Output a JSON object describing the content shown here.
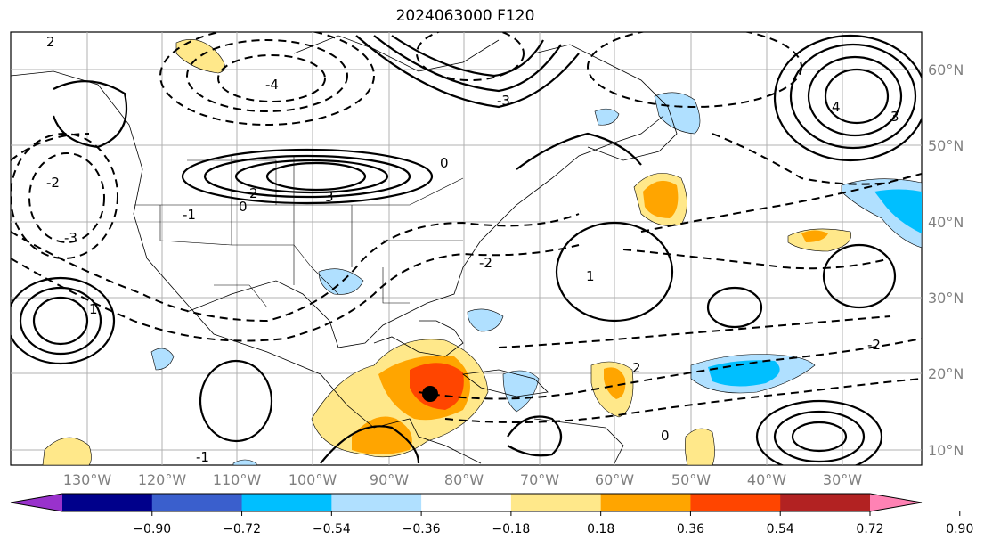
{
  "title": "2024063000 F120",
  "lon_labels": [
    "130°W",
    "120°W",
    "110°W",
    "100°W",
    "90°W",
    "80°W",
    "70°W",
    "60°W",
    "50°W",
    "40°W",
    "30°W"
  ],
  "lat_labels": [
    "60°N",
    "50°N",
    "40°N",
    "30°N",
    "20°N",
    "10°N"
  ],
  "colorbar": {
    "ticks": [
      "−0.90",
      "−0.72",
      "−0.54",
      "−0.36",
      "−0.18",
      "0.18",
      "0.36",
      "0.54",
      "0.72",
      "0.90"
    ],
    "colors": [
      "#9932cc",
      "#00008b",
      "#3a5fcd",
      "#00bfff",
      "#b0e0ff",
      "#ffffff",
      "#ffe88a",
      "#ffa500",
      "#ff4500",
      "#b22222",
      "#ff82b4"
    ]
  },
  "contour_labels": [
    "2",
    "0",
    "-4",
    "-3",
    "-2",
    "-1",
    "1",
    "2",
    "3",
    "4",
    "0",
    "-2",
    "-3",
    "-2",
    "-1",
    "0",
    "1",
    "2",
    "3"
  ],
  "marker": "storm-center-dot"
}
